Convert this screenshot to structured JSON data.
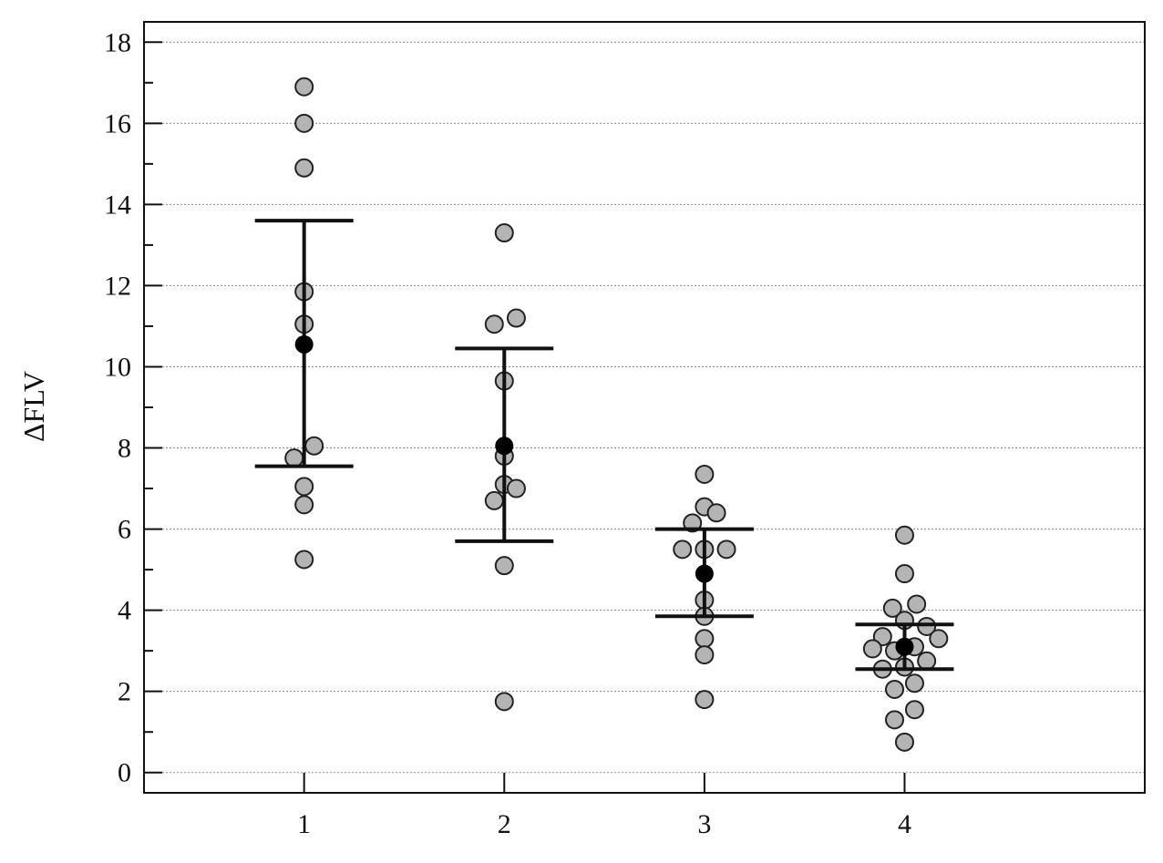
{
  "chart_data": {
    "type": "scatter",
    "title": "",
    "xlabel": "",
    "ylabel": "ΔFLV",
    "xlim": [
      0.2,
      5.2
    ],
    "ylim": [
      -0.5,
      18.5
    ],
    "grid": true,
    "x_ticks": [
      1,
      2,
      3,
      4
    ],
    "y_ticks": [
      0,
      2,
      4,
      6,
      8,
      10,
      12,
      14,
      16,
      18
    ],
    "groups": [
      {
        "x": 1,
        "points": [
          {
            "dx": 0,
            "y": 16.9
          },
          {
            "dx": 0,
            "y": 16.0
          },
          {
            "dx": 0,
            "y": 14.9
          },
          {
            "dx": 0,
            "y": 11.85
          },
          {
            "dx": 0,
            "y": 11.05
          },
          {
            "dx": -0.05,
            "y": 7.75
          },
          {
            "dx": 0.05,
            "y": 8.05
          },
          {
            "dx": 0,
            "y": 7.05
          },
          {
            "dx": 0,
            "y": 6.6
          },
          {
            "dx": 0,
            "y": 5.25
          }
        ],
        "mean": 10.55,
        "lower": 7.55,
        "upper": 13.6
      },
      {
        "x": 2,
        "points": [
          {
            "dx": 0,
            "y": 13.3
          },
          {
            "dx": -0.05,
            "y": 11.05
          },
          {
            "dx": 0.06,
            "y": 11.2
          },
          {
            "dx": 0,
            "y": 9.65
          },
          {
            "dx": 0,
            "y": 7.8
          },
          {
            "dx": 0,
            "y": 7.1
          },
          {
            "dx": 0.06,
            "y": 7.0
          },
          {
            "dx": -0.05,
            "y": 6.7
          },
          {
            "dx": 0,
            "y": 5.1
          },
          {
            "dx": 0,
            "y": 1.75
          }
        ],
        "mean": 8.05,
        "lower": 5.7,
        "upper": 10.45
      },
      {
        "x": 3,
        "points": [
          {
            "dx": 0,
            "y": 7.35
          },
          {
            "dx": 0,
            "y": 6.55
          },
          {
            "dx": 0.06,
            "y": 6.4
          },
          {
            "dx": -0.06,
            "y": 6.15
          },
          {
            "dx": -0.11,
            "y": 5.5
          },
          {
            "dx": 0,
            "y": 5.5
          },
          {
            "dx": 0.11,
            "y": 5.5
          },
          {
            "dx": 0,
            "y": 4.25
          },
          {
            "dx": 0,
            "y": 3.85
          },
          {
            "dx": 0,
            "y": 3.3
          },
          {
            "dx": 0,
            "y": 2.9
          },
          {
            "dx": 0,
            "y": 1.8
          }
        ],
        "mean": 4.9,
        "lower": 3.85,
        "upper": 6.0
      },
      {
        "x": 4,
        "points": [
          {
            "dx": 0,
            "y": 5.85
          },
          {
            "dx": 0,
            "y": 4.9
          },
          {
            "dx": -0.06,
            "y": 4.05
          },
          {
            "dx": 0.06,
            "y": 4.15
          },
          {
            "dx": 0,
            "y": 3.75
          },
          {
            "dx": 0.11,
            "y": 3.6
          },
          {
            "dx": -0.11,
            "y": 3.35
          },
          {
            "dx": 0.17,
            "y": 3.3
          },
          {
            "dx": -0.16,
            "y": 3.05
          },
          {
            "dx": -0.05,
            "y": 3.0
          },
          {
            "dx": 0.05,
            "y": 3.1
          },
          {
            "dx": 0.11,
            "y": 2.75
          },
          {
            "dx": 0,
            "y": 2.6
          },
          {
            "dx": -0.11,
            "y": 2.55
          },
          {
            "dx": 0.05,
            "y": 2.2
          },
          {
            "dx": -0.05,
            "y": 2.05
          },
          {
            "dx": 0.05,
            "y": 1.55
          },
          {
            "dx": -0.05,
            "y": 1.3
          },
          {
            "dx": 0,
            "y": 0.75
          }
        ],
        "mean": 3.1,
        "lower": 2.55,
        "upper": 3.65
      }
    ]
  }
}
